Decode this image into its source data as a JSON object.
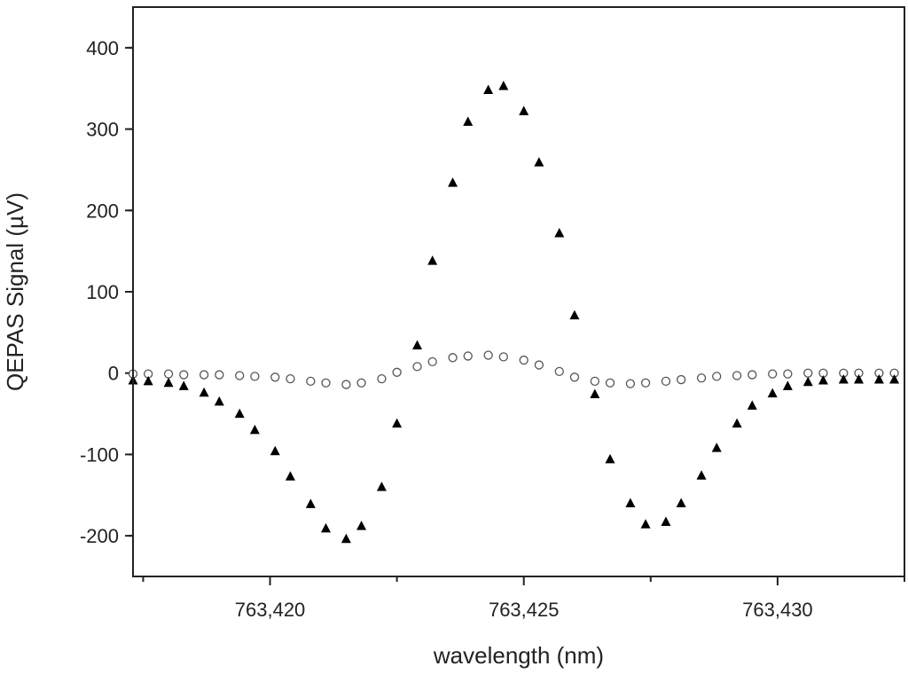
{
  "chart_data": {
    "type": "scatter",
    "title": "",
    "xlabel": "wavelength (nm)",
    "ylabel": "QEPAS Signal (µV)",
    "xlim": [
      763.4173,
      763.4325
    ],
    "ylim": [
      -250,
      450
    ],
    "x_ticks": [
      763.42,
      763.425,
      763.43
    ],
    "x_tick_labels": [
      "763,420",
      "763,425",
      "763,430"
    ],
    "y_ticks": [
      -200,
      -100,
      0,
      100,
      200,
      300,
      400
    ],
    "y_tick_labels": [
      "-200",
      "-100",
      "0",
      "100",
      "200",
      "300",
      "400"
    ],
    "grid": false,
    "legend": "none",
    "series": [
      {
        "marker": "filled-triangle",
        "color": "#000000",
        "x": [
          763.4173,
          763.4176,
          763.418,
          763.4183,
          763.4187,
          763.419,
          763.4194,
          763.4197,
          763.4201,
          763.4204,
          763.4208,
          763.4211,
          763.4215,
          763.4218,
          763.4222,
          763.4225,
          763.4229,
          763.4232,
          763.4236,
          763.4239,
          763.4243,
          763.4246,
          763.425,
          763.4253,
          763.4257,
          763.426,
          763.4264,
          763.4267,
          763.4271,
          763.4274,
          763.4278,
          763.4281,
          763.4285,
          763.4288,
          763.4292,
          763.4295,
          763.4299,
          763.4302,
          763.4306,
          763.4309,
          763.4313,
          763.4316,
          763.432,
          763.4323
        ],
        "y": [
          -9,
          -10,
          -12,
          -16,
          -24,
          -35,
          -50,
          -70,
          -96,
          -127,
          -161,
          -191,
          -204,
          -188,
          -140,
          -62,
          34,
          138,
          234,
          309,
          348,
          353,
          322,
          259,
          172,
          71,
          -26,
          -106,
          -160,
          -186,
          -183,
          -160,
          -126,
          -92,
          -62,
          -40,
          -25,
          -16,
          -11,
          -9,
          -8,
          -8,
          -8,
          -8
        ]
      },
      {
        "marker": "open-circle",
        "color": "#555555",
        "x": [
          763.4173,
          763.4176,
          763.418,
          763.4183,
          763.4187,
          763.419,
          763.4194,
          763.4197,
          763.4201,
          763.4204,
          763.4208,
          763.4211,
          763.4215,
          763.4218,
          763.4222,
          763.4225,
          763.4229,
          763.4232,
          763.4236,
          763.4239,
          763.4243,
          763.4246,
          763.425,
          763.4253,
          763.4257,
          763.426,
          763.4264,
          763.4267,
          763.4271,
          763.4274,
          763.4278,
          763.4281,
          763.4285,
          763.4288,
          763.4292,
          763.4295,
          763.4299,
          763.4302,
          763.4306,
          763.4309,
          763.4313,
          763.4316,
          763.432,
          763.4323
        ],
        "y": [
          -1,
          -1,
          -1,
          -2,
          -2,
          -2,
          -3,
          -4,
          -5,
          -7,
          -10,
          -12,
          -14,
          -12,
          -7,
          1,
          8,
          14,
          19,
          21,
          22,
          20,
          16,
          10,
          2,
          -5,
          -10,
          -12,
          -13,
          -12,
          -10,
          -8,
          -6,
          -4,
          -3,
          -2,
          -1,
          -1,
          0,
          0,
          0,
          0,
          0,
          0
        ]
      }
    ]
  }
}
